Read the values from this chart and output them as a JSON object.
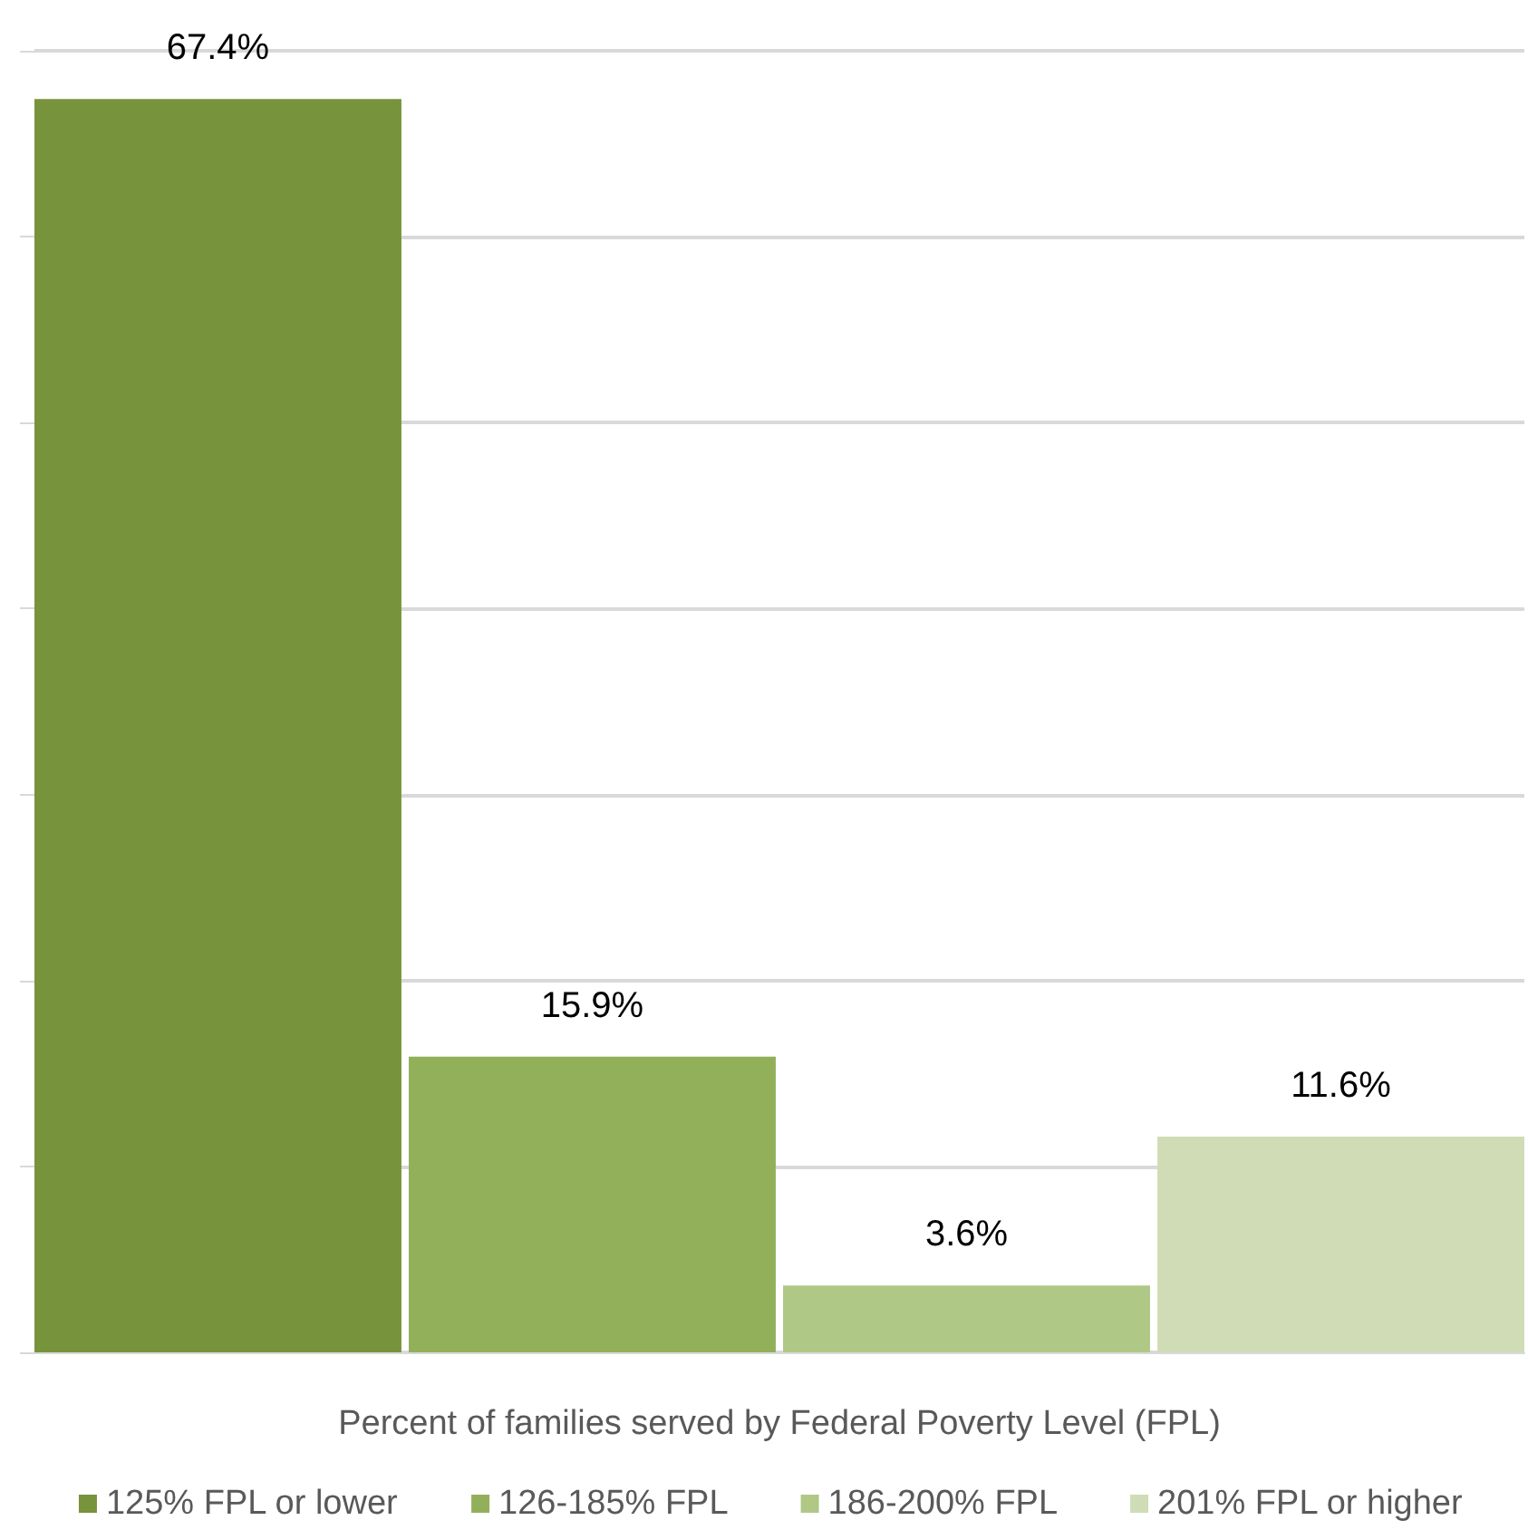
{
  "chart_data": {
    "type": "bar",
    "xlabel": "Percent of families served by Federal Poverty Level (FPL)",
    "categories": [
      null
    ],
    "series": [
      {
        "name": "125% FPL or lower",
        "color": "#77933c",
        "values": [
          67.4
        ],
        "value_labels": [
          "67.4%"
        ]
      },
      {
        "name": "126-185% FPL",
        "color": "#92b05a",
        "values": [
          15.9
        ],
        "value_labels": [
          "15.9%"
        ]
      },
      {
        "name": "186-200% FPL",
        "color": "#b0c886",
        "values": [
          3.6
        ],
        "value_labels": [
          "3.6%"
        ]
      },
      {
        "name": "201% FPL or higher",
        "color": "#cfdcb6",
        "values": [
          11.6
        ],
        "value_labels": [
          "11.6%"
        ]
      }
    ],
    "ylim": [
      0,
      70
    ],
    "yticks": [
      {
        "value": 0,
        "label": null
      },
      {
        "value": 10,
        "label": null
      },
      {
        "value": 20,
        "label": null
      },
      {
        "value": 30,
        "label": null
      },
      {
        "value": 40,
        "label": null
      },
      {
        "value": 50,
        "label": null
      },
      {
        "value": 60,
        "label": null
      },
      {
        "value": 70,
        "label": null
      }
    ],
    "grid": "y",
    "legend": "bottom"
  }
}
